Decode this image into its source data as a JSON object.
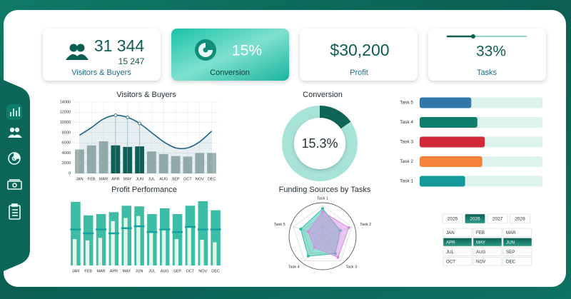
{
  "kpis": [
    {
      "value": "31 344",
      "sub_value": "15 247",
      "label": "Visitors & Buyers"
    },
    {
      "value": "15%",
      "label": "Conversion"
    },
    {
      "value": "$30,200",
      "label": "Profit"
    },
    {
      "value": "33%",
      "label": "Tasks",
      "progress": 33
    }
  ],
  "chart_data": [
    {
      "type": "combo",
      "title": "Visitors & Buyers",
      "categories": [
        "JAN",
        "FEB",
        "MAR",
        "APR",
        "MAY",
        "JUN",
        "JUL",
        "AUG",
        "SEP",
        "OCT",
        "NOV",
        "DEC"
      ],
      "series": [
        {
          "type": "bar",
          "color": "#9fb2ad",
          "highlight_color": "#0e5e52",
          "values": [
            4700,
            5500,
            6300,
            5500,
            5200,
            5300,
            4300,
            3800,
            3400,
            3300,
            4000,
            4000
          ]
        },
        {
          "type": "line",
          "color": "#1f6386",
          "values": [
            7500,
            9000,
            10700,
            11400,
            11000,
            9800,
            8000,
            6200,
            5000,
            5000,
            6200,
            8300
          ]
        }
      ],
      "highlight": [
        3,
        4,
        5
      ],
      "ylim": [
        0,
        14000
      ],
      "yticks": [
        0,
        2000,
        4000,
        6000,
        8000,
        10000,
        12000,
        14000
      ],
      "grid": true
    },
    {
      "type": "donut",
      "title": "Conversion",
      "values": [
        15.3,
        84.7
      ],
      "colors": [
        "#0e6457",
        "#a8e3d8"
      ],
      "center_label": "15.3%"
    },
    {
      "type": "hbar",
      "categories": [
        "Task 5",
        "Task 4",
        "Task 3",
        "Task 2",
        "Task 1"
      ],
      "values": [
        42,
        47,
        53,
        51,
        37
      ],
      "colors": [
        "#2f78a8",
        "#0f7e6c",
        "#d0293a",
        "#f5843a",
        "#14999a"
      ],
      "track_color": "#dcf3ee",
      "xlim": [
        0,
        100
      ]
    },
    {
      "type": "bullet",
      "title": "Profit Performance",
      "categories": [
        "JAN",
        "FEB",
        "MAR",
        "APR",
        "MAY",
        "JUN",
        "JUL",
        "AUG",
        "SEP",
        "OCT",
        "NOV",
        "DEC"
      ],
      "series": [
        {
          "style": "bar",
          "color": "#3dbca6",
          "values": [
            99,
            78,
            80,
            83,
            93,
            92,
            80,
            89,
            80,
            93,
            100,
            86
          ]
        },
        {
          "style": "inner",
          "color": "#e3f8e8",
          "values": [
            41,
            39,
            43,
            69,
            74,
            77,
            52,
            57,
            41,
            60,
            40,
            36
          ]
        },
        {
          "style": "marker",
          "color": "#14a3a0",
          "values": [
            56,
            50,
            56,
            50,
            58,
            61,
            52,
            56,
            52,
            60,
            56,
            56
          ]
        }
      ],
      "ylim": [
        0,
        100
      ]
    },
    {
      "type": "radar",
      "title": "Funding Sources by Tasks",
      "categories": [
        "Task 1",
        "Task 2",
        "Task 3",
        "Task 4",
        "Task 5"
      ],
      "series": [
        {
          "color": "#2fbfa8",
          "values": [
            90,
            60,
            70,
            80,
            75
          ]
        },
        {
          "color": "#d58be0",
          "values": [
            80,
            90,
            85,
            45,
            50
          ]
        }
      ],
      "rlim": [
        0,
        100
      ],
      "rticks": [
        33,
        67,
        100
      ]
    }
  ],
  "calendar": {
    "years": [
      "2025",
      "2026",
      "2027",
      "2028"
    ],
    "selected_year": 1,
    "months": [
      "JAN",
      "FEB",
      "MAR",
      "APR",
      "MAY",
      "JUN",
      "JUL",
      "AUG",
      "SEP",
      "OCT",
      "NOV",
      "DEC"
    ],
    "selected_months": [
      3,
      4,
      5
    ]
  }
}
